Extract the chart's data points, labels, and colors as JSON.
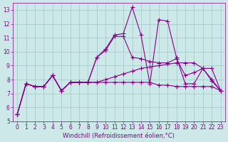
{
  "background_color": "#cce8e8",
  "grid_color": "#aacccc",
  "line_color": "#880088",
  "marker": "+",
  "markersize": 4,
  "linewidth": 0.8,
  "xlabel": "Windchill (Refroidissement éolien,°C)",
  "xlabel_fontsize": 6,
  "tick_fontsize": 5.5,
  "xlim": [
    -0.5,
    23.5
  ],
  "ylim": [
    5,
    13.5
  ],
  "yticks": [
    5,
    6,
    7,
    8,
    9,
    10,
    11,
    12,
    13
  ],
  "xticks": [
    0,
    1,
    2,
    3,
    4,
    5,
    6,
    7,
    8,
    9,
    10,
    11,
    12,
    13,
    14,
    15,
    16,
    17,
    18,
    19,
    20,
    21,
    22,
    23
  ],
  "series": [
    [
      5.5,
      7.7,
      7.5,
      7.5,
      8.3,
      7.2,
      7.8,
      7.8,
      7.8,
      9.6,
      10.2,
      11.2,
      11.3,
      13.2,
      11.2,
      7.7,
      12.3,
      12.2,
      9.6,
      7.7,
      7.7,
      8.8,
      7.9,
      7.2
    ],
    [
      5.5,
      7.7,
      7.5,
      7.5,
      8.3,
      7.2,
      7.8,
      7.8,
      7.8,
      9.6,
      10.1,
      11.1,
      11.1,
      9.6,
      9.5,
      9.3,
      9.2,
      9.2,
      9.5,
      8.3,
      8.5,
      8.8,
      8.8,
      7.2
    ],
    [
      5.5,
      7.7,
      7.5,
      7.5,
      8.3,
      7.2,
      7.8,
      7.8,
      7.8,
      7.8,
      7.8,
      7.8,
      7.8,
      7.8,
      7.8,
      7.8,
      7.6,
      7.6,
      7.5,
      7.5,
      7.5,
      7.5,
      7.5,
      7.2
    ],
    [
      5.5,
      7.7,
      7.5,
      7.5,
      8.3,
      7.2,
      7.8,
      7.8,
      7.8,
      7.8,
      8.0,
      8.2,
      8.4,
      8.6,
      8.8,
      8.9,
      9.0,
      9.1,
      9.2,
      9.2,
      9.2,
      8.8,
      8.0,
      7.2
    ]
  ]
}
